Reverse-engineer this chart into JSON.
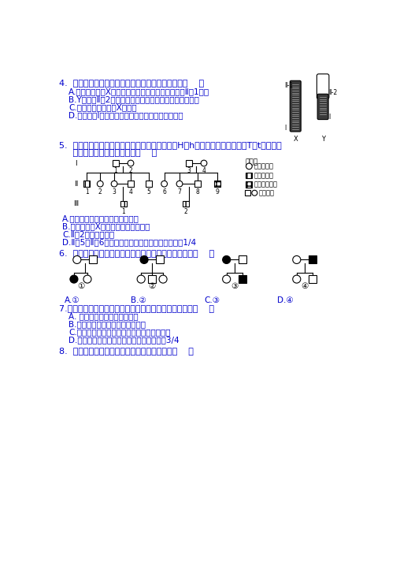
{
  "bg_color": "#ffffff",
  "text_color": "#0000cc",
  "black_color": "#000000",
  "gray_dark": "#404040",
  "fig_width": 5.22,
  "fig_height": 7.37,
  "dpi": 100,
  "q4": {
    "y": 18,
    "question": "4.  右图为一对人类性染色体，下列描述不正确的是（    ）",
    "options": [
      "A.红绿色盲是伴X隐性遗传，控制该性状的基因位于Ⅱ－1片段",
      "B.Y染色体Ⅱ－2片段携带基因控制的性状只能传递给男孩",
      "C.精子中不可能含有X染色体",
      "D.位于片段Ⅰ的基因在四分体时期可能发生交叉互换"
    ]
  },
  "q5": {
    "question": "5.  调查中发现两个家系中都有甲遗传病（基因为H、h）和乙遗传病（基因为T、t）患者，",
    "question2": "     系谱图如下。分析正确的是（    ）",
    "options": [
      "A.甲病为常染色体上显性基因控制",
      "B.乙病可能是X染色体上隐性基因控制",
      "C.Ⅱ－2一定是纯合子",
      "D.Ⅱ－5和Ⅱ－6结婚后，所生孩子患甲病的可能性是1/4"
    ]
  },
  "q6": {
    "question": "6.  下列为四种遗传病的系谱图，能够排除伴性遗传的是（    ）",
    "options": [
      "A.①",
      "B.②",
      "C.③",
      "D.④"
    ]
  },
  "q7": {
    "question": "7.下列叙述不属于人类常染色体显性遗传病遗传特征的是（    ）",
    "options": [
      "A. 男性与女性的患病概率相同",
      "B.患者的双亲中至少有一人为患者",
      "C.患者家系中会出现连续几代都有患者的情况",
      "D.若双亲均无患者，则子代的发病率最大为3/4"
    ]
  },
  "q8": {
    "question": "8.  下面关于减数分裂形成配子的描述正确的是（    ）"
  }
}
